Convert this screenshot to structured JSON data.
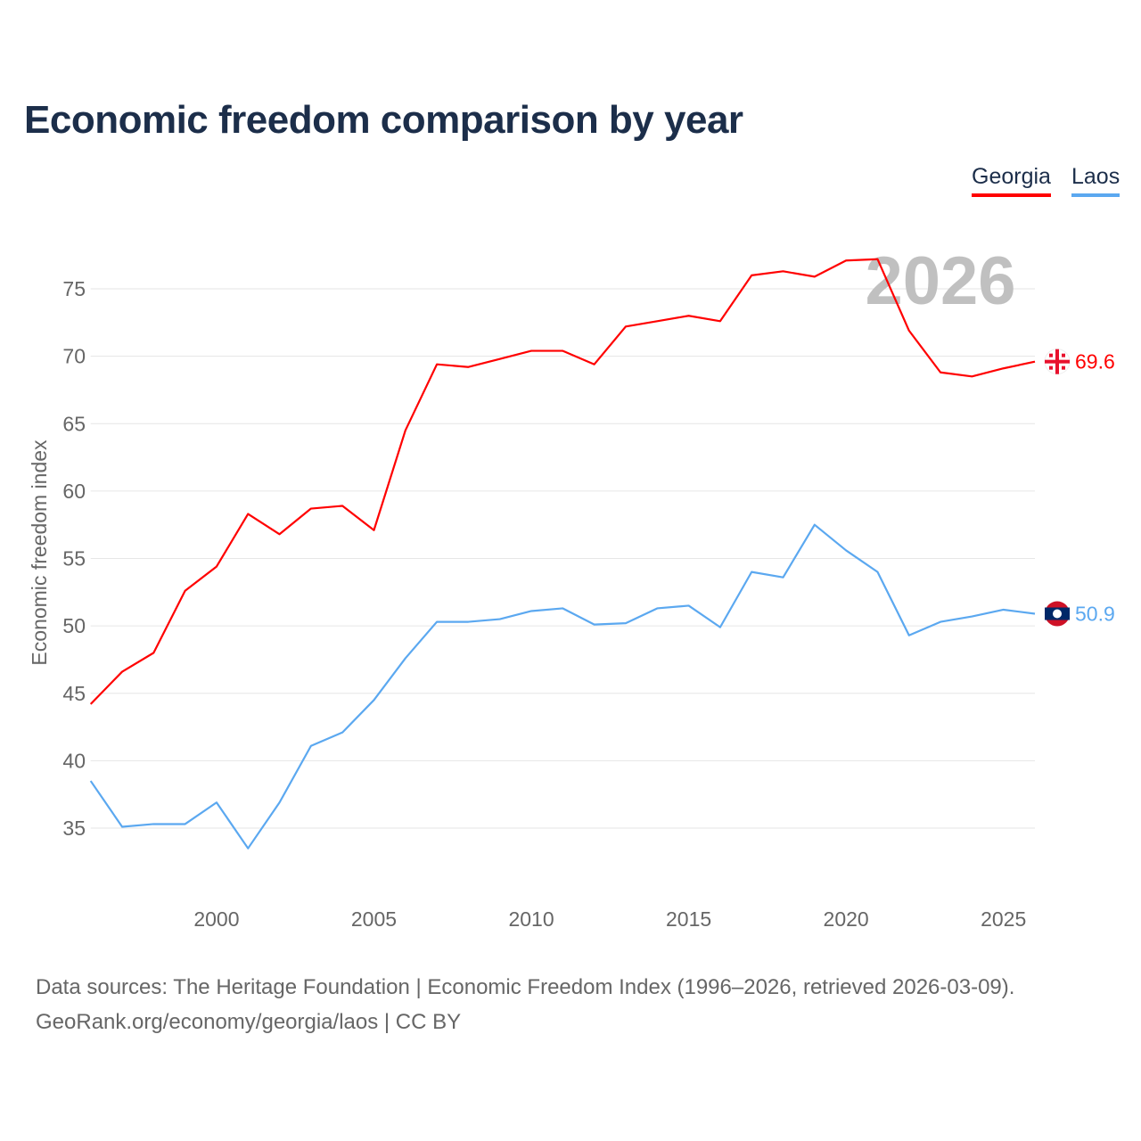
{
  "title": "Economic freedom comparison by year",
  "legend": [
    "Georgia",
    "Laos"
  ],
  "source_line1": "Data sources: The Heritage Foundation | Economic Freedom Index (1996–2026, retrieved 2026-03-09).",
  "source_line2": "GeoRank.org/economy/georgia/laos | CC BY",
  "chart_data": {
    "type": "line",
    "title": "Economic freedom comparison by year",
    "xlabel": "",
    "ylabel": "Economic freedom index",
    "year_label": "2026",
    "x": [
      1996,
      1997,
      1998,
      1999,
      2000,
      2001,
      2002,
      2003,
      2004,
      2005,
      2006,
      2007,
      2008,
      2009,
      2010,
      2011,
      2012,
      2013,
      2014,
      2015,
      2016,
      2017,
      2018,
      2019,
      2020,
      2021,
      2022,
      2023,
      2024,
      2025,
      2026
    ],
    "xticks": [
      2000,
      2005,
      2010,
      2015,
      2020,
      2025
    ],
    "yticks": [
      35,
      40,
      45,
      50,
      55,
      60,
      65,
      70,
      75
    ],
    "xlim": [
      1996,
      2026
    ],
    "ylim": [
      30.5,
      79.5
    ],
    "grid": true,
    "legend_position": "top-right",
    "series": [
      {
        "name": "Georgia",
        "color": "#ff0000",
        "end_label": "69.6",
        "values": [
          44.2,
          46.6,
          48.0,
          52.6,
          54.4,
          58.3,
          56.8,
          58.7,
          58.9,
          57.1,
          64.5,
          69.4,
          69.2,
          69.8,
          70.4,
          70.4,
          69.4,
          72.2,
          72.6,
          73.0,
          72.6,
          76.0,
          76.3,
          75.9,
          77.1,
          77.2,
          71.9,
          68.8,
          68.5,
          69.1,
          69.6
        ]
      },
      {
        "name": "Laos",
        "color": "#5ba8f0",
        "end_label": "50.9",
        "values": [
          38.5,
          35.1,
          35.3,
          35.3,
          36.9,
          33.5,
          36.9,
          41.1,
          42.1,
          44.5,
          47.6,
          50.3,
          50.3,
          50.5,
          51.1,
          51.3,
          50.1,
          50.2,
          51.3,
          51.5,
          49.9,
          54.0,
          53.6,
          57.5,
          55.6,
          54.0,
          49.3,
          50.3,
          50.7,
          51.2,
          50.9
        ]
      }
    ]
  }
}
